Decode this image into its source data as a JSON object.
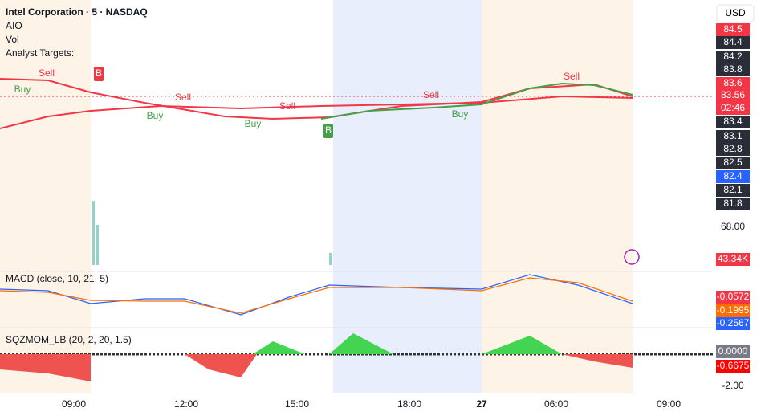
{
  "header": {
    "symbol": "Intel Corporation · 5 · NASDAQ",
    "indicators": [
      "AIO",
      "Vol",
      "Analyst Targets:"
    ]
  },
  "currency": "USD",
  "price_scale": [
    "84.5",
    "84.4",
    "84.2",
    "83.8",
    "83.6",
    "83.56",
    "02:46",
    "83.4",
    "83.1",
    "82.8",
    "82.5",
    "82.4",
    "82.1",
    "81.8"
  ],
  "volume_scale": [
    "68.00",
    "43.34K"
  ],
  "macd": {
    "title": "MACD (close, 10, 21, 5)",
    "scale": [
      "-0.0572",
      "-0.1995",
      "-0.2567"
    ]
  },
  "squeeze": {
    "title": "SQZMOM_LB (20, 2, 20, 1.5)",
    "scale": [
      "0.0000",
      "-0.6675",
      "-2.00"
    ]
  },
  "time_axis": [
    "09:00",
    "12:00",
    "15:00",
    "18:00",
    "27",
    "06:00",
    "09:00"
  ],
  "signals": [
    "Sell",
    "Buy",
    "B",
    "Sell",
    "Buy",
    "Sell",
    "Buy",
    "B",
    "Sell",
    "Buy",
    "Sell"
  ]
}
